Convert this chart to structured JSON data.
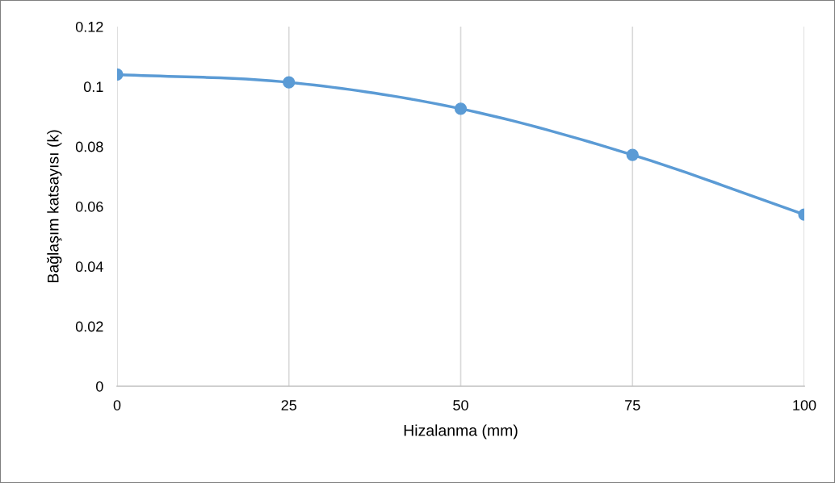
{
  "chart_data": {
    "type": "line",
    "xlabel": "Hizalanma (mm)",
    "ylabel": "Bağlaşım katsayısı (k)",
    "x": [
      0,
      25,
      50,
      75,
      100
    ],
    "series": [
      {
        "color": "#5b9bd5",
        "values": [
          0.104,
          0.1014,
          0.0926,
          0.0772,
          0.0573
        ]
      }
    ],
    "xlim": [
      0,
      100
    ],
    "xticks": [
      0,
      25,
      50,
      75,
      100
    ],
    "ylim": [
      0,
      0.12
    ],
    "yticks": [
      0,
      0.02,
      0.04,
      0.06,
      0.08,
      0.1,
      0.12
    ],
    "grid": "x",
    "marker": "circle",
    "line_style": "solid"
  }
}
